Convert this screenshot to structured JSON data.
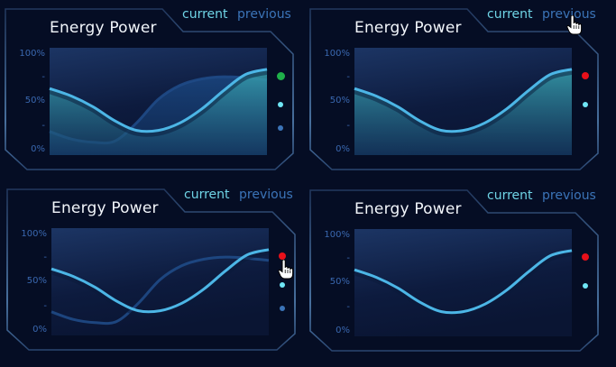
{
  "panels": [
    {
      "title": "Energy Power",
      "legend": {
        "current": "current",
        "previous": "previous"
      },
      "y_ticks": [
        "100%",
        "-",
        "50%",
        "-",
        "0%"
      ],
      "show_previous": true,
      "fill_areas": true,
      "dots": [
        {
          "name": "green-dot",
          "color": "#1fb04a",
          "size": 9
        },
        {
          "name": "cyan-dot",
          "color": "#6fe6f6",
          "size": 6
        },
        {
          "name": "blue-dot",
          "color": "#3b74b8",
          "size": 6
        }
      ],
      "cursor": null
    },
    {
      "title": "Energy Power",
      "legend": {
        "current": "current",
        "previous": "previous"
      },
      "y_ticks": [
        "100%",
        "-",
        "50%",
        "-",
        "0%"
      ],
      "show_previous": false,
      "fill_areas": true,
      "dots": [
        {
          "name": "red-dot",
          "color": "#e8101a",
          "size": 8
        },
        {
          "name": "cyan-dot",
          "color": "#6fe6f6",
          "size": 6
        }
      ],
      "cursor": "previous"
    },
    {
      "title": "Energy Power",
      "legend": {
        "current": "current",
        "previous": "previous"
      },
      "y_ticks": [
        "100%",
        "-",
        "50%",
        "-",
        "0%"
      ],
      "show_previous": true,
      "fill_areas": false,
      "dots": [
        {
          "name": "red-dot",
          "color": "#e8101a",
          "size": 8
        },
        {
          "name": "cyan-dot",
          "color": "#6fe6f6",
          "size": 6
        },
        {
          "name": "blue-dot",
          "color": "#3b74b8",
          "size": 6
        }
      ],
      "cursor": "dot"
    },
    {
      "title": "Energy Power",
      "legend": {
        "current": "current",
        "previous": "previous"
      },
      "y_ticks": [
        "100%",
        "-",
        "50%",
        "-",
        "0%"
      ],
      "show_previous": false,
      "fill_areas": false,
      "dots": [
        {
          "name": "red-dot",
          "color": "#e8101a",
          "size": 8
        },
        {
          "name": "cyan-dot",
          "color": "#6fe6f6",
          "size": 6
        }
      ],
      "cursor": null
    }
  ],
  "colors": {
    "background": "#050d24",
    "frame": "#3a5a86",
    "current_line": "#4cb6e6",
    "previous_line": "#1f4a86",
    "current_fill": "#3aa9b4",
    "previous_fill": "#1b4a86"
  },
  "chart_data": [
    {
      "type": "area",
      "title": "Energy Power",
      "ylim": [
        0,
        100
      ],
      "y_tick_labels": [
        "0%",
        "-",
        "50%",
        "-",
        "100%"
      ],
      "legend": [
        "current",
        "previous"
      ],
      "series": [
        {
          "name": "current",
          "x": [
            0,
            0.1,
            0.2,
            0.3,
            0.4,
            0.5,
            0.6,
            0.7,
            0.8,
            0.9,
            1.0
          ],
          "values": [
            62,
            55,
            45,
            32,
            23,
            23,
            30,
            43,
            60,
            75,
            80
          ]
        },
        {
          "name": "previous",
          "x": [
            0,
            0.1,
            0.2,
            0.3,
            0.4,
            0.5,
            0.6,
            0.7,
            0.8,
            0.9,
            1.0
          ],
          "values": [
            22,
            15,
            12,
            13,
            30,
            52,
            65,
            71,
            73,
            72,
            70
          ]
        }
      ]
    },
    {
      "type": "area",
      "title": "Energy Power",
      "ylim": [
        0,
        100
      ],
      "y_tick_labels": [
        "0%",
        "-",
        "50%",
        "-",
        "100%"
      ],
      "legend": [
        "current",
        "previous"
      ],
      "series": [
        {
          "name": "current",
          "x": [
            0,
            0.1,
            0.2,
            0.3,
            0.4,
            0.5,
            0.6,
            0.7,
            0.8,
            0.9,
            1.0
          ],
          "values": [
            62,
            55,
            45,
            32,
            23,
            23,
            30,
            43,
            60,
            75,
            80
          ]
        }
      ]
    },
    {
      "type": "line",
      "title": "Energy Power",
      "ylim": [
        0,
        100
      ],
      "y_tick_labels": [
        "0%",
        "-",
        "50%",
        "-",
        "100%"
      ],
      "legend": [
        "current",
        "previous"
      ],
      "series": [
        {
          "name": "current",
          "x": [
            0,
            0.1,
            0.2,
            0.3,
            0.4,
            0.5,
            0.6,
            0.7,
            0.8,
            0.9,
            1.0
          ],
          "values": [
            62,
            55,
            45,
            32,
            23,
            23,
            30,
            43,
            60,
            75,
            80
          ]
        },
        {
          "name": "previous",
          "x": [
            0,
            0.1,
            0.2,
            0.3,
            0.4,
            0.5,
            0.6,
            0.7,
            0.8,
            0.9,
            1.0
          ],
          "values": [
            22,
            15,
            12,
            13,
            30,
            52,
            65,
            71,
            73,
            72,
            70
          ]
        }
      ]
    },
    {
      "type": "line",
      "title": "Energy Power",
      "ylim": [
        0,
        100
      ],
      "y_tick_labels": [
        "0%",
        "-",
        "50%",
        "-",
        "100%"
      ],
      "legend": [
        "current",
        "previous"
      ],
      "series": [
        {
          "name": "current",
          "x": [
            0,
            0.1,
            0.2,
            0.3,
            0.4,
            0.5,
            0.6,
            0.7,
            0.8,
            0.9,
            1.0
          ],
          "values": [
            62,
            55,
            45,
            32,
            23,
            23,
            30,
            43,
            60,
            75,
            80
          ]
        }
      ]
    }
  ]
}
